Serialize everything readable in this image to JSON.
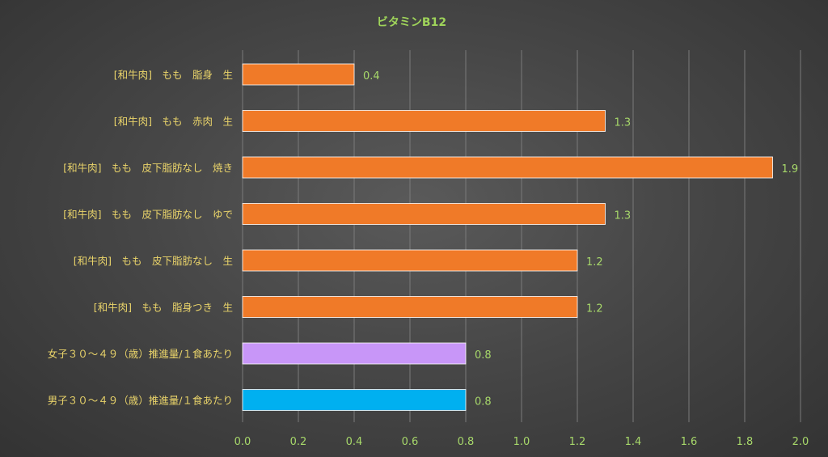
{
  "chart_data": {
    "type": "bar",
    "orientation": "horizontal",
    "title": "ビタミンB12",
    "categories": [
      "[和牛肉]　もも　脂身　生",
      "[和牛肉]　もも　赤肉　生",
      "[和牛肉]　もも　皮下脂肪なし　焼き",
      "[和牛肉]　もも　皮下脂肪なし　ゆで",
      "[和牛肉]　もも　皮下脂肪なし　生",
      "[和牛肉]　もも　脂身つき　生",
      "女子３０～４９（歳）推進量/１食あたり",
      "男子３０～４９（歳）推進量/１食あたり"
    ],
    "values": [
      0.4,
      1.3,
      1.9,
      1.3,
      1.2,
      1.2,
      0.8,
      0.8
    ],
    "value_labels": [
      "0.4",
      "1.3",
      "1.9",
      "1.3",
      "1.2",
      "1.2",
      "0.8",
      "0.8"
    ],
    "bar_colors": [
      "#f07a28",
      "#f07a28",
      "#f07a28",
      "#f07a28",
      "#f07a28",
      "#f07a28",
      "#c896f8",
      "#00b0f0"
    ],
    "xlim": [
      0,
      2.0
    ],
    "xticks": [
      0.0,
      0.2,
      0.4,
      0.6,
      0.8,
      1.0,
      1.2,
      1.4,
      1.6,
      1.8,
      2.0
    ],
    "xtick_labels": [
      "0.0",
      "0.2",
      "0.4",
      "0.6",
      "0.8",
      "1.0",
      "1.2",
      "1.4",
      "1.6",
      "1.8",
      "2.0"
    ],
    "grid": true,
    "legend": "none"
  },
  "colors": {
    "title": "#9fd45a",
    "category_text": "#ead46a",
    "value_text": "#a7d86a",
    "gridline": "#7a7a7a"
  }
}
